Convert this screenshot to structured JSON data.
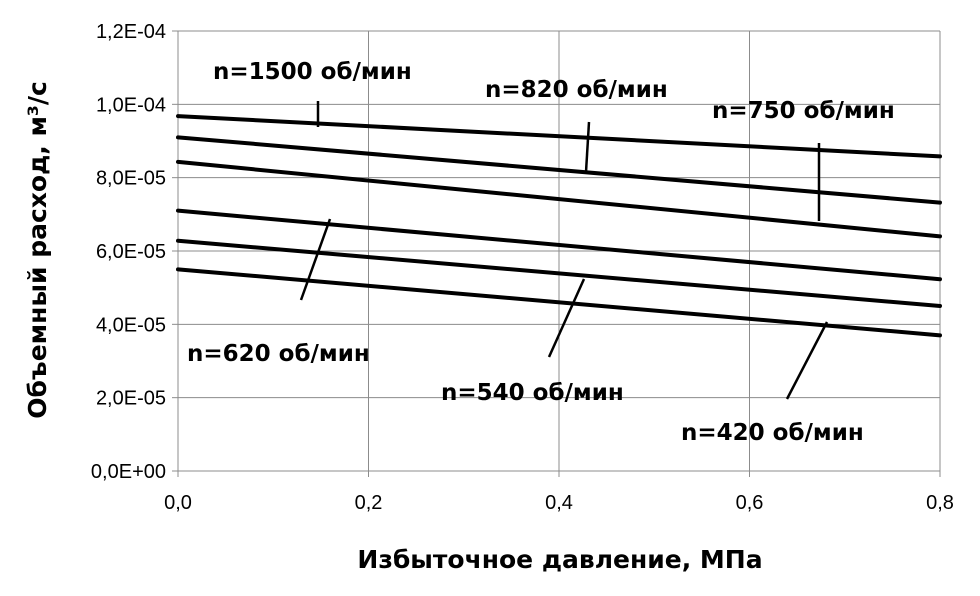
{
  "chart_data": {
    "type": "line",
    "title": "",
    "xlabel": "Избыточное давление, МПа",
    "ylabel": "Объемный расход, м³/с",
    "xlim": [
      0,
      0.8
    ],
    "ylim": [
      0,
      0.00012
    ],
    "x_ticks": [
      "0,0",
      "0,2",
      "0,4",
      "0,6",
      "0,8"
    ],
    "y_ticks": [
      "0,0E+00",
      "2,0E-05",
      "4,0E-05",
      "6,0E-05",
      "8,0E-05",
      "1,0E-04",
      "1,2E-04"
    ],
    "grid": true,
    "series": [
      {
        "name": "n=1500 об/мин",
        "x": [
          0,
          0.8
        ],
        "y": [
          9.68e-05,
          8.58e-05
        ]
      },
      {
        "name": "n=820 об/мин",
        "x": [
          0,
          0.8
        ],
        "y": [
          9.1e-05,
          7.32e-05
        ]
      },
      {
        "name": "n=750 об/мин",
        "x": [
          0,
          0.8
        ],
        "y": [
          8.43e-05,
          6.4e-05
        ]
      },
      {
        "name": "n=620 об/мин",
        "x": [
          0,
          0.8
        ],
        "y": [
          7.1e-05,
          5.23e-05
        ]
      },
      {
        "name": "n=540 об/мин",
        "x": [
          0,
          0.8
        ],
        "y": [
          6.28e-05,
          4.5e-05
        ]
      },
      {
        "name": "n=420 об/мин",
        "x": [
          0,
          0.8
        ],
        "y": [
          5.5e-05,
          3.7e-05
        ]
      }
    ]
  }
}
